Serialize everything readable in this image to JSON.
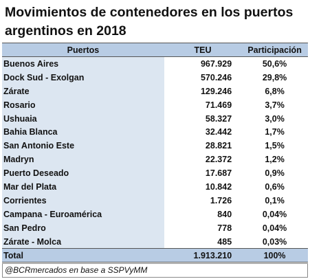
{
  "title": "Movimientos de contenedores en los puertos argentinos en 2018",
  "table": {
    "headers": [
      "Puertos",
      "TEU",
      "Participación"
    ],
    "rows": [
      {
        "puerto": "Buenos Aires",
        "teu": "967.929",
        "part": "50,6%"
      },
      {
        "puerto": "Dock Sud - Exolgan",
        "teu": "570.246",
        "part": "29,8%"
      },
      {
        "puerto": "Zárate",
        "teu": "129.246",
        "part": "6,8%"
      },
      {
        "puerto": "Rosario",
        "teu": "71.469",
        "part": "3,7%"
      },
      {
        "puerto": "Ushuaia",
        "teu": "58.327",
        "part": "3,0%"
      },
      {
        "puerto": "Bahia Blanca",
        "teu": "32.442",
        "part": "1,7%"
      },
      {
        "puerto": "San Antonio Este",
        "teu": "28.821",
        "part": "1,5%"
      },
      {
        "puerto": "Madryn",
        "teu": "22.372",
        "part": "1,2%"
      },
      {
        "puerto": "Puerto Deseado",
        "teu": "17.687",
        "part": "0,9%"
      },
      {
        "puerto": "Mar del Plata",
        "teu": "10.842",
        "part": "0,6%"
      },
      {
        "puerto": "Corrientes",
        "teu": "1.726",
        "part": "0,1%"
      },
      {
        "puerto": "Campana - Euroamérica",
        "teu": "840",
        "part": "0,04%"
      },
      {
        "puerto": "San Pedro",
        "teu": "778",
        "part": "0,04%"
      },
      {
        "puerto": "Zárate - Molca",
        "teu": "485",
        "part": "0,03%"
      }
    ],
    "total": {
      "label": "Total",
      "teu": "1.913.210",
      "part": "100%"
    }
  },
  "source": "@BCRmercados en base a SSPVyMM",
  "colors": {
    "header_bg": "#b8cce4",
    "port_column_bg": "#dce6f1"
  }
}
